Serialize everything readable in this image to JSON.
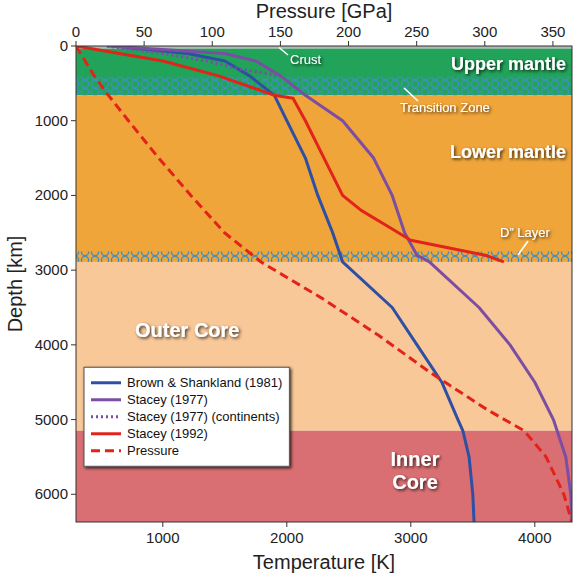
{
  "chart_data": {
    "type": "line",
    "xlabel": "Temperature [K]",
    "x2label": "Pressure [GPa]",
    "ylabel": "Depth [km]",
    "xlim": [
      300,
      4300
    ],
    "xticks": [
      1000,
      2000,
      3000,
      4000
    ],
    "x2lim": [
      0,
      364
    ],
    "x2ticks": [
      0,
      50,
      100,
      150,
      200,
      250,
      300,
      350
    ],
    "ylim": [
      0,
      6371
    ],
    "yticks": [
      0,
      1000,
      2000,
      3000,
      4000,
      5000,
      6000
    ],
    "legend": "lower left",
    "grid": false,
    "regions": [
      {
        "name": "Crust",
        "from": 0,
        "to": 35,
        "color": "#b7b7b7"
      },
      {
        "name": "Upper mantle",
        "from": 35,
        "to": 660,
        "color": "#22a35a"
      },
      {
        "name": "Lower mantle",
        "from": 660,
        "to": 2890,
        "color": "#f0a53a"
      },
      {
        "name": "Outer Core",
        "from": 2890,
        "to": 5150,
        "color": "#f8c898"
      },
      {
        "name": "Inner Core",
        "from": 5150,
        "to": 6371,
        "color": "#d96f73"
      }
    ],
    "bands": [
      {
        "name": "Transition Zone",
        "from": 410,
        "to": 660
      },
      {
        "name": "D” Layer",
        "from": 2750,
        "to": 2890
      }
    ],
    "series": [
      {
        "name": "Brown & Shankland (1981)",
        "color": "#2e4fa3",
        "line_style": "solid",
        "x": [
          600,
          1200,
          1500,
          1700,
          1900,
          2000,
          2150,
          2250,
          2370,
          2450,
          2850,
          3050,
          3250,
          3380,
          3420,
          3470,
          3500,
          3510
        ],
        "y": [
          0,
          100,
          200,
          400,
          660,
          1000,
          1500,
          2000,
          2500,
          2890,
          3500,
          4000,
          4500,
          5000,
          5150,
          5500,
          6000,
          6371
        ]
      },
      {
        "name": "Stacey (1977)",
        "color": "#7b4ea3",
        "line_style": "solid",
        "x": [
          550,
          1500,
          1750,
          1950,
          2150,
          2450,
          2700,
          2850,
          2950,
          3050,
          3150,
          3550,
          3800,
          4000,
          4150,
          4250,
          4290,
          4300
        ],
        "y": [
          0,
          100,
          200,
          400,
          660,
          1000,
          1500,
          2000,
          2500,
          2800,
          2890,
          3500,
          4000,
          4500,
          5000,
          5500,
          6000,
          6371
        ]
      },
      {
        "name": "Stacey (1977) (continents)",
        "color": "#7b4ea3",
        "line_style": "dotted",
        "x": [
          550,
          1000,
          1350,
          1600,
          1950
        ],
        "y": [
          0,
          100,
          200,
          300,
          400
        ]
      },
      {
        "name": "Stacey (1992)",
        "color": "#e2231a",
        "line_style": "solid",
        "x": [
          300,
          650,
          1000,
          1450,
          1900,
          2050,
          2150,
          2300,
          2450,
          2600,
          2800,
          3000,
          3300,
          3600,
          3750
        ],
        "y": [
          0,
          100,
          200,
          400,
          660,
          700,
          1000,
          1500,
          2000,
          2200,
          2400,
          2600,
          2700,
          2800,
          2890
        ]
      },
      {
        "name": "Pressure",
        "color": "#e2231a",
        "line_style": "dashed",
        "axis": "x2",
        "x": [
          0,
          13.4,
          23.8,
          38.5,
          60.7,
          84.3,
          109,
          135.8,
          180,
          222,
          260,
          302,
          328.9,
          345,
          358,
          363.9
        ],
        "y": [
          0,
          400,
          660,
          1000,
          1500,
          2000,
          2500,
          2891,
          3371,
          3871,
          4371,
          4871,
          5150,
          5500,
          6000,
          6371
        ]
      }
    ]
  }
}
